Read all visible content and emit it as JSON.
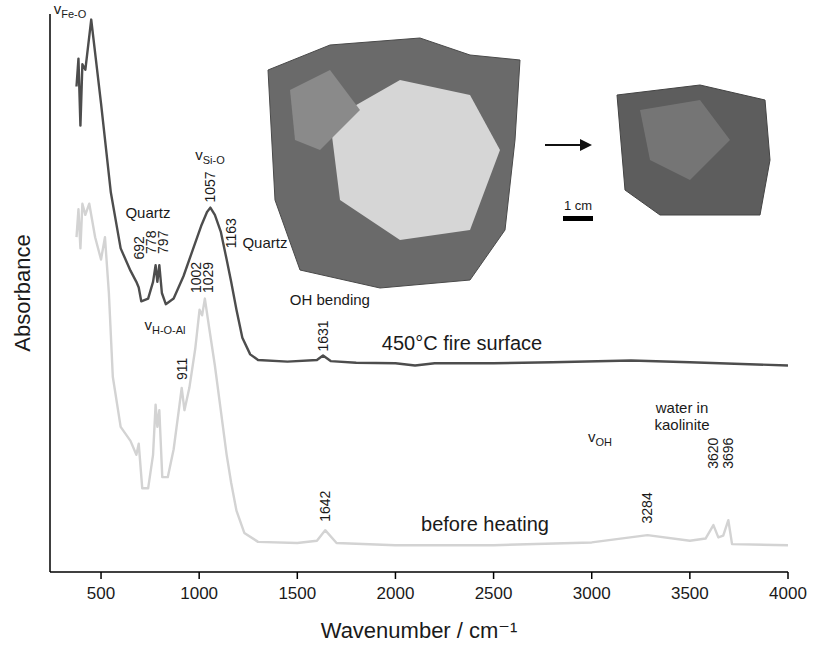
{
  "chart_data": {
    "type": "line",
    "x_label": "Wavenumber / cm⁻¹",
    "y_label": "Absorbance",
    "xlim": [
      240,
      4000
    ],
    "xticks": [
      500,
      1000,
      1500,
      2000,
      2500,
      3000,
      3500,
      4000
    ],
    "ylim": [
      0,
      100
    ],
    "yticks": [],
    "tick_labels": "x",
    "grid": false,
    "series": [
      {
        "name": "450°C fire surface",
        "color": "#4d4d4d",
        "x": [
          375,
          385,
          395,
          405,
          420,
          450,
          480,
          500,
          550,
          600,
          650,
          680,
          692,
          705,
          740,
          765,
          778,
          787,
          797,
          810,
          830,
          870,
          920,
          970,
          1010,
          1040,
          1057,
          1080,
          1110,
          1140,
          1163,
          1190,
          1220,
          1260,
          1300,
          1450,
          1600,
          1631,
          1670,
          1800,
          2000,
          2100,
          2200,
          2500,
          2800,
          3200,
          3500,
          4000
        ],
        "values": [
          87,
          92,
          80,
          91,
          90,
          99,
          90,
          84,
          68,
          58,
          54,
          52,
          51,
          48.5,
          49,
          52,
          55,
          52,
          55,
          50,
          48,
          49,
          53,
          58,
          62,
          64.5,
          65.3,
          64,
          61,
          56,
          52,
          47,
          42,
          39,
          38,
          37.7,
          38,
          38.8,
          37.8,
          37.5,
          37.4,
          37,
          37.4,
          37.4,
          37.6,
          37.9,
          37.6,
          37
        ]
      },
      {
        "name": "before heating",
        "color": "#d3d3d3",
        "x": [
          375,
          385,
          395,
          405,
          420,
          440,
          470,
          500,
          520,
          540,
          560,
          600,
          650,
          680,
          692,
          710,
          740,
          765,
          778,
          787,
          797,
          812,
          840,
          870,
          900,
          911,
          925,
          950,
          980,
          1002,
          1015,
          1029,
          1050,
          1080,
          1110,
          1140,
          1163,
          1190,
          1230,
          1300,
          1500,
          1600,
          1642,
          1700,
          2000,
          2500,
          3000,
          3284,
          3500,
          3580,
          3620,
          3645,
          3670,
          3696,
          3715,
          4000
        ],
        "values": [
          60,
          65,
          58,
          66,
          64,
          66,
          60,
          56,
          60,
          50,
          35,
          26,
          23.5,
          21,
          23,
          15,
          15,
          21,
          30,
          26,
          29,
          17,
          17,
          22,
          30,
          33,
          29,
          33,
          40,
          47,
          46,
          49,
          44,
          37,
          29,
          21,
          16,
          11,
          7,
          5.4,
          5.2,
          5.6,
          7.5,
          5.2,
          4.8,
          4.8,
          5.3,
          6.6,
          5.6,
          6,
          8.4,
          6.2,
          6.5,
          9.3,
          5,
          4.8
        ]
      }
    ],
    "annotations": [
      {
        "text": "v",
        "sub": "Fe-O",
        "x": 342,
        "y": 100
      },
      {
        "text": "Quartz",
        "x": 739,
        "y": 63.4
      },
      {
        "text": "v",
        "sub": "Si-O",
        "x": 1055,
        "y": 73.8
      },
      {
        "text": "Quartz",
        "x": 1335,
        "y": 58.1
      },
      {
        "text": "OH bending",
        "x": 1666,
        "y": 47.8
      },
      {
        "text": "v",
        "sub": "H-O-Al",
        "x": 826,
        "y": 43.4
      },
      {
        "text": "v",
        "sub": "OH",
        "x": 3042,
        "y": 23.3
      },
      {
        "text": "water in",
        "x": 3460,
        "y": 28.5
      },
      {
        "text": "kaolinite",
        "x": 3460,
        "y": 25.4
      }
    ],
    "peak_labels": [
      {
        "x": 692,
        "y": 56
      },
      {
        "x": 778,
        "y": 57
      },
      {
        "x": 797,
        "y": 57
      },
      {
        "x": 1057,
        "y": 66.2
      },
      {
        "x": 1163,
        "y": 58
      },
      {
        "x": 1631,
        "y": 39.5
      },
      {
        "x": 911,
        "y": 34.4
      },
      {
        "x": 1002,
        "y": 50
      },
      {
        "x": 1029,
        "y": 50
      },
      {
        "x": 1642,
        "y": 9
      },
      {
        "x": 3284,
        "y": 8.7
      },
      {
        "x": 3620,
        "y": 18.5
      },
      {
        "x": 3696,
        "y": 18.5
      }
    ],
    "photo_scale_label": "1 cm"
  }
}
